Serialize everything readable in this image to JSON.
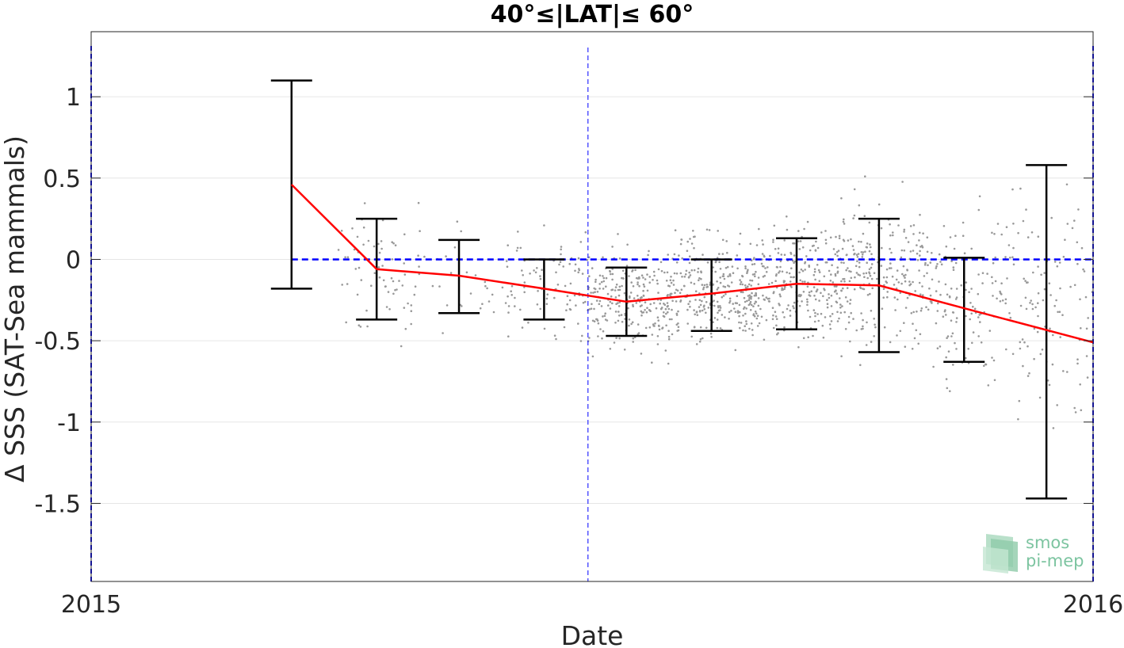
{
  "chart_data": {
    "type": "scatter",
    "title": "40°≤|LAT|≤ 60°",
    "xlabel": "Date",
    "ylabel": "Δ SSS (SAT-Sea mammals)",
    "x_tick_labels": [
      "2015",
      "2016"
    ],
    "x_range": [
      "2015-01-01",
      "2016-01-01"
    ],
    "ylim": [
      -1.98,
      1.4
    ],
    "y_ticks": [
      1,
      0.5,
      0,
      -0.5,
      -1,
      -1.5
    ],
    "y_tick_labels": [
      "1",
      "0.5",
      "0",
      "-0.5",
      "-1",
      "-1.5"
    ],
    "grid": true,
    "reference_line": {
      "y": 0,
      "style": "dashed",
      "color": "#0000ff"
    },
    "vertical_marker": {
      "x": "2015-07-01",
      "style": "dashed",
      "color": "#0000ff"
    },
    "series": [
      {
        "kind": "line",
        "color": "#ff0000",
        "x": [
          "2015-03-15",
          "2015-04-15",
          "2015-05-15",
          "2015-06-15",
          "2015-07-15",
          "2015-08-15",
          "2015-09-15",
          "2015-10-15",
          "2015-11-15",
          "2016-01-01"
        ],
        "y": [
          0.46,
          -0.06,
          -0.1,
          -0.18,
          -0.26,
          -0.21,
          -0.15,
          -0.16,
          -0.3,
          -0.51
        ]
      },
      {
        "kind": "errorbar",
        "color": "#000000",
        "x": [
          "2015-03-15",
          "2015-04-15",
          "2015-05-15",
          "2015-06-15",
          "2015-07-15",
          "2015-08-15",
          "2015-09-15",
          "2015-10-15",
          "2015-11-15",
          "2015-12-15"
        ],
        "low": [
          -0.18,
          -0.37,
          -0.33,
          -0.37,
          -0.47,
          -0.44,
          -0.43,
          -0.57,
          -0.63,
          -1.47
        ],
        "high": [
          1.1,
          0.25,
          0.12,
          0.0,
          -0.05,
          0.0,
          0.13,
          0.25,
          0.01,
          0.58
        ]
      }
    ],
    "scatter_clouds": [
      {
        "month": "2015-04",
        "center": -0.1,
        "spread": 0.28,
        "count": 70
      },
      {
        "month": "2015-05",
        "center": -0.1,
        "spread": 0.22,
        "count": 25
      },
      {
        "month": "2015-06",
        "center": -0.15,
        "spread": 0.22,
        "count": 90
      },
      {
        "month": "2015-07",
        "center": -0.25,
        "spread": 0.22,
        "count": 260
      },
      {
        "month": "2015-08",
        "center": -0.2,
        "spread": 0.22,
        "count": 300
      },
      {
        "month": "2015-09",
        "center": -0.13,
        "spread": 0.25,
        "count": 260
      },
      {
        "month": "2015-10",
        "center": -0.1,
        "spread": 0.3,
        "count": 230
      },
      {
        "month": "2015-11",
        "center": -0.2,
        "spread": 0.35,
        "count": 140
      },
      {
        "month": "2015-12",
        "center": -0.3,
        "spread": 0.55,
        "count": 110
      }
    ],
    "point_color": "#999999",
    "logo": {
      "line1": "smos",
      "line2": "pi-mep"
    }
  }
}
